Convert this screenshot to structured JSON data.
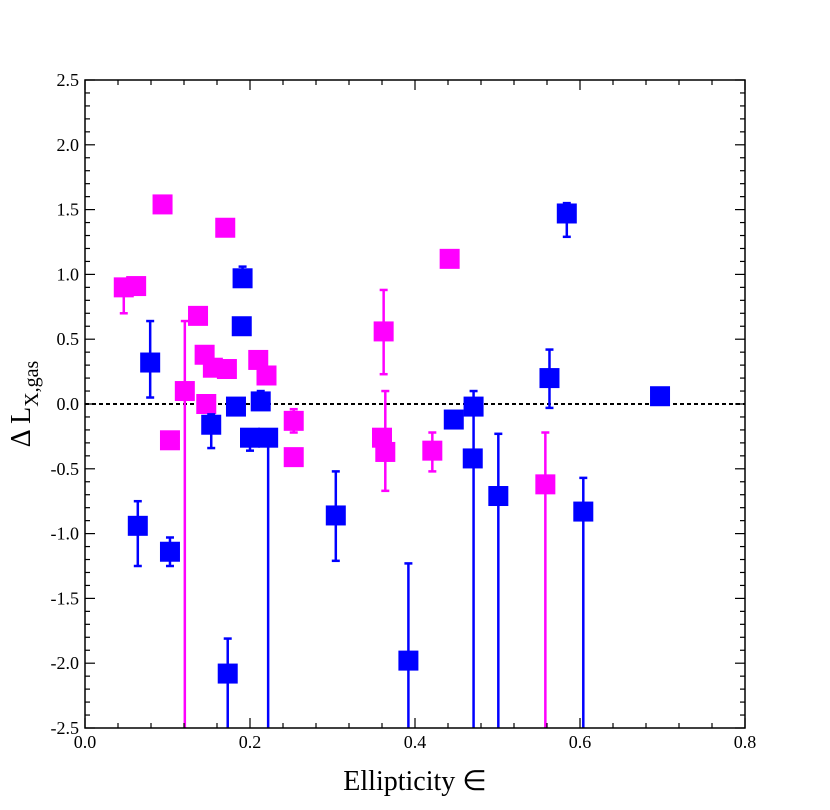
{
  "chart_data": {
    "type": "scatter",
    "title": "",
    "xlabel": "Ellipticity ∈",
    "ylabel": {
      "main": "Δ L",
      "sub": "X,gas"
    },
    "xlim": [
      0.0,
      0.8
    ],
    "ylim": [
      -2.5,
      2.5
    ],
    "x_ticks": [
      0.0,
      0.2,
      0.4,
      0.6,
      0.8
    ],
    "x_tick_labels": [
      "0.0",
      "0.2",
      "0.4",
      "0.6",
      "0.8"
    ],
    "y_ticks": [
      -2.5,
      -2.0,
      -1.5,
      -1.0,
      -0.5,
      0.0,
      0.5,
      1.0,
      1.5,
      2.0,
      2.5
    ],
    "y_tick_labels": [
      "-2.5",
      "-2.0",
      "-1.5",
      "-1.0",
      "-0.5",
      "0.0",
      "0.5",
      "1.0",
      "1.5",
      "2.0",
      "2.5"
    ],
    "reference_line": {
      "y": 0.0,
      "style": "dashed",
      "color": "#000000"
    },
    "series": [
      {
        "name": "magenta",
        "color": "#ff00ff",
        "marker": "square",
        "points": [
          {
            "x": 0.047,
            "y": 0.9,
            "ylo": 0.7,
            "yhi": 0.9
          },
          {
            "x": 0.062,
            "y": 0.91
          },
          {
            "x": 0.094,
            "y": 1.54
          },
          {
            "x": 0.103,
            "y": -0.28
          },
          {
            "x": 0.121,
            "y": 0.1,
            "ylo": -2.5,
            "yhi": 0.64
          },
          {
            "x": 0.137,
            "y": 0.68
          },
          {
            "x": 0.145,
            "y": 0.38
          },
          {
            "x": 0.147,
            "y": 0.0
          },
          {
            "x": 0.155,
            "y": 0.28
          },
          {
            "x": 0.17,
            "y": 1.36
          },
          {
            "x": 0.172,
            "y": 0.27
          },
          {
            "x": 0.21,
            "y": 0.34
          },
          {
            "x": 0.22,
            "y": 0.22
          },
          {
            "x": 0.253,
            "y": -0.13,
            "ylo": -0.22,
            "yhi": -0.04
          },
          {
            "x": 0.253,
            "y": -0.41
          },
          {
            "x": 0.36,
            "y": -0.26
          },
          {
            "x": 0.362,
            "y": 0.56,
            "ylo": 0.23,
            "yhi": 0.88
          },
          {
            "x": 0.364,
            "y": -0.37,
            "ylo": -0.67,
            "yhi": 0.1
          },
          {
            "x": 0.421,
            "y": -0.36,
            "ylo": -0.52,
            "yhi": -0.22
          },
          {
            "x": 0.442,
            "y": 1.12
          },
          {
            "x": 0.558,
            "y": -0.62,
            "ylo": -2.5,
            "yhi": -0.22
          }
        ]
      },
      {
        "name": "blue",
        "color": "#0000ff",
        "marker": "square",
        "points": [
          {
            "x": 0.064,
            "y": -0.94,
            "ylo": -1.25,
            "yhi": -0.75
          },
          {
            "x": 0.079,
            "y": 0.32,
            "ylo": 0.05,
            "yhi": 0.64
          },
          {
            "x": 0.103,
            "y": -1.14,
            "ylo": -1.25,
            "yhi": -1.03
          },
          {
            "x": 0.153,
            "y": -0.16,
            "ylo": -0.34,
            "yhi": -0.08
          },
          {
            "x": 0.173,
            "y": -2.08,
            "ylo": -2.5,
            "yhi": -1.81
          },
          {
            "x": 0.183,
            "y": -0.02
          },
          {
            "x": 0.19,
            "y": 0.6,
            "ylo": 0.54,
            "yhi": 0.66
          },
          {
            "x": 0.191,
            "y": 0.97,
            "ylo": 0.91,
            "yhi": 1.06
          },
          {
            "x": 0.2,
            "y": -0.26,
            "ylo": -0.36,
            "yhi": -0.22
          },
          {
            "x": 0.213,
            "y": 0.02,
            "ylo": -0.02,
            "yhi": 0.1
          },
          {
            "x": 0.222,
            "y": -0.26,
            "ylo": -2.5,
            "yhi": -0.2
          },
          {
            "x": 0.304,
            "y": -0.86,
            "ylo": -1.21,
            "yhi": -0.52
          },
          {
            "x": 0.392,
            "y": -1.98,
            "ylo": -2.5,
            "yhi": -1.23
          },
          {
            "x": 0.447,
            "y": -0.12
          },
          {
            "x": 0.47,
            "y": -0.42
          },
          {
            "x": 0.471,
            "y": -0.02,
            "ylo": -2.5,
            "yhi": 0.1
          },
          {
            "x": 0.501,
            "y": -0.71,
            "ylo": -2.5,
            "yhi": -0.23
          },
          {
            "x": 0.563,
            "y": 0.2,
            "ylo": -0.03,
            "yhi": 0.42
          },
          {
            "x": 0.584,
            "y": 1.47,
            "ylo": 1.29,
            "yhi": 1.55
          },
          {
            "x": 0.604,
            "y": -0.83,
            "ylo": -2.5,
            "yhi": -0.57
          },
          {
            "x": 0.697,
            "y": 0.06,
            "ylo": 0.0,
            "yhi": 0.08
          }
        ]
      }
    ]
  }
}
